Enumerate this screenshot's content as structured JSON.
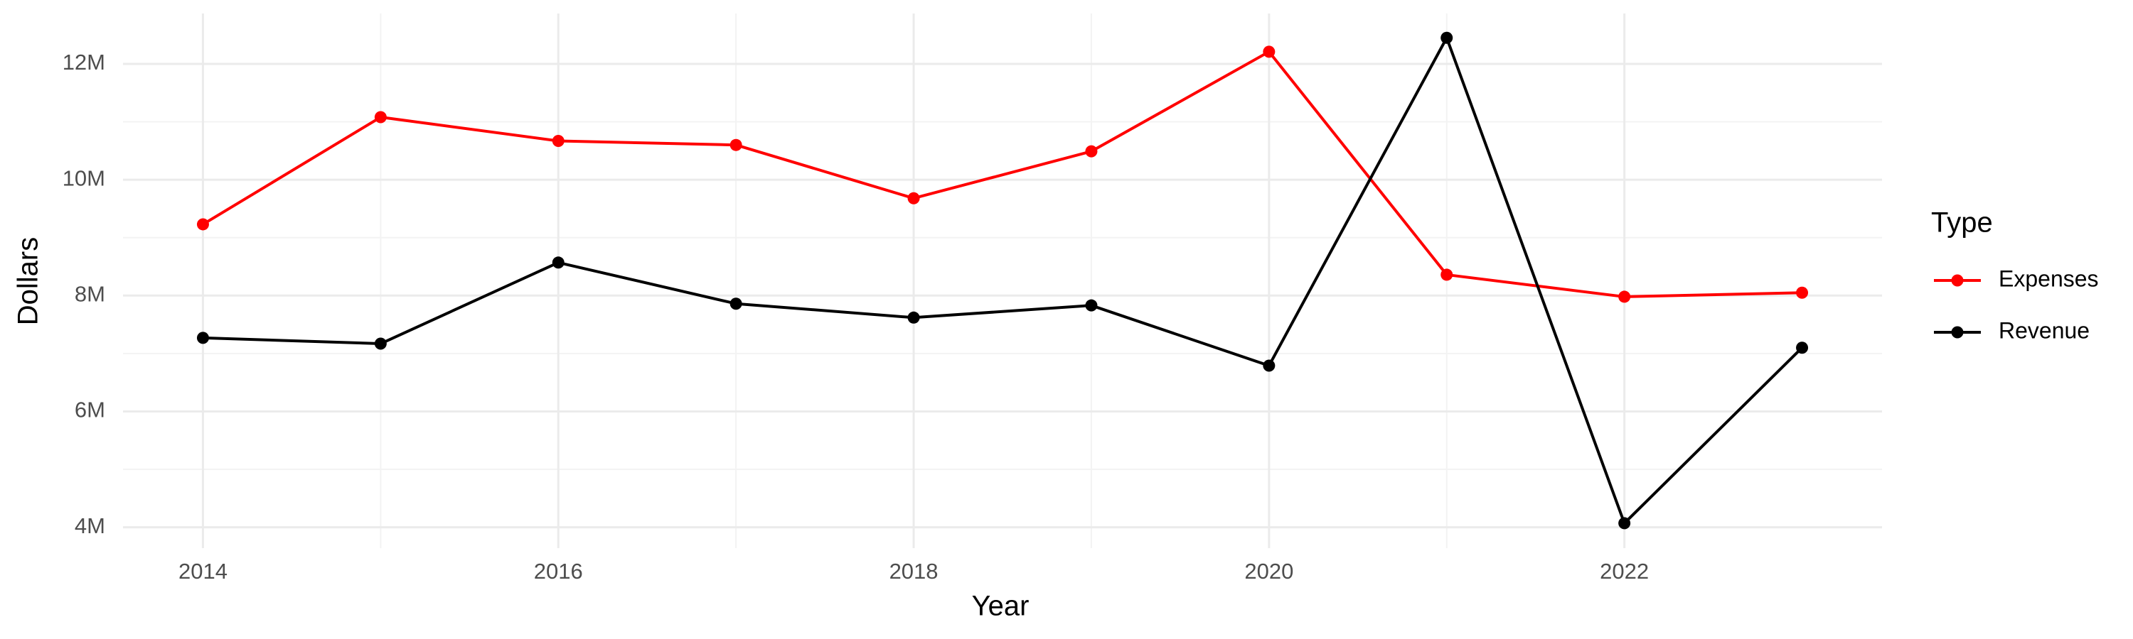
{
  "chart_data": {
    "type": "line",
    "x_label": "Year",
    "y_label": "Dollars",
    "legend_title": "Type",
    "legend_position": "right",
    "grid": true,
    "x": [
      2014,
      2015,
      2016,
      2017,
      2018,
      2019,
      2020,
      2021,
      2022,
      2023
    ],
    "series": [
      {
        "name": "Expenses",
        "color": "#ff0000",
        "values": [
          9230000,
          11080000,
          10670000,
          10600000,
          9680000,
          10490000,
          12210000,
          8360000,
          7980000,
          8050000
        ]
      },
      {
        "name": "Revenue",
        "color": "#000000",
        "values": [
          7270000,
          7170000,
          8570000,
          7860000,
          7620000,
          7830000,
          6790000,
          12450000,
          4070000,
          7100000
        ]
      }
    ],
    "xlim": [
      2013.55,
      2023.45
    ],
    "xticks": [
      2014,
      2016,
      2018,
      2020,
      2022
    ],
    "ylim": [
      3640000,
      12870000
    ],
    "yticks": [
      {
        "value": 4000000,
        "label": "4M"
      },
      {
        "value": 6000000,
        "label": "6M"
      },
      {
        "value": 8000000,
        "label": "8M"
      },
      {
        "value": 10000000,
        "label": "10M"
      },
      {
        "value": 12000000,
        "label": "12M"
      }
    ]
  }
}
